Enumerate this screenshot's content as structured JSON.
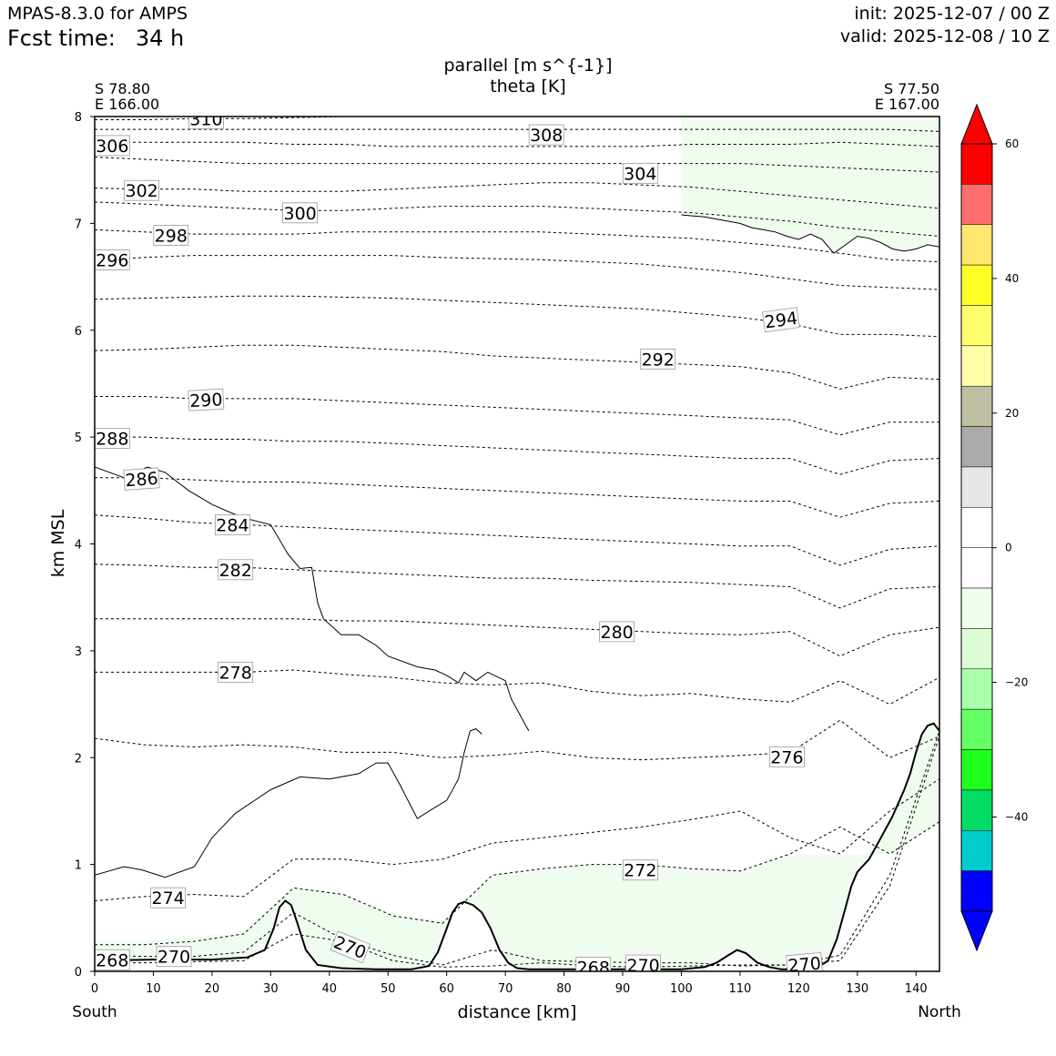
{
  "header": {
    "model": "MPAS-8.3.0 for AMPS",
    "fcst_label": "Fcst time:",
    "fcst_value": "34 h",
    "init": "init: 2025-12-07 / 00 Z",
    "valid": "valid: 2025-12-08 / 10 Z"
  },
  "colors": {
    "contour": "#000000",
    "light_green_fill": "#f0fcee",
    "frame": "#000000"
  },
  "chart_data": {
    "type": "cross-section",
    "title_line1": "parallel [m s^{-1}]",
    "title_line2": "theta [K]",
    "start_point": {
      "lat": "S 78.80",
      "lon": "E 166.00"
    },
    "end_point": {
      "lat": "S 77.50",
      "lon": "E 167.00"
    },
    "xlabel": "distance [km]",
    "ylabel": "km MSL",
    "x_left_label": "South",
    "x_right_label": "North",
    "xlim": [
      0,
      144
    ],
    "ylim": [
      0,
      8
    ],
    "xticks": [
      0,
      10,
      20,
      30,
      40,
      50,
      60,
      70,
      80,
      90,
      100,
      110,
      120,
      130,
      140
    ],
    "yticks": [
      0,
      1,
      2,
      3,
      4,
      5,
      6,
      7,
      8
    ],
    "theta_contours": [
      {
        "value": 268,
        "y": [
          0.08,
          0.08,
          0.09,
          0.1,
          0.35,
          0.28,
          0.1,
          0.04,
          0.05,
          0.08,
          0.05,
          0.04,
          0.05,
          0.06,
          0.06,
          0.1,
          0.8,
          2.2
        ]
      },
      {
        "value": 270,
        "y": [
          0.15,
          0.14,
          0.14,
          0.18,
          0.55,
          0.3,
          0.15,
          0.06,
          0.2,
          0.1,
          0.09,
          0.08,
          0.08,
          0.05,
          0.06,
          0.15,
          0.9,
          2.25
        ]
      },
      {
        "value": 272,
        "y": [
          0.25,
          0.25,
          0.28,
          0.35,
          0.78,
          0.72,
          0.52,
          0.45,
          0.9,
          0.96,
          1.0,
          1.0,
          0.96,
          0.94,
          1.1,
          1.35,
          1.1,
          1.4
        ]
      },
      {
        "value": 274,
        "y": [
          0.66,
          0.7,
          0.72,
          0.7,
          1.05,
          1.05,
          1.0,
          1.05,
          1.2,
          1.25,
          1.3,
          1.35,
          1.42,
          1.5,
          1.25,
          1.1,
          1.5,
          1.8
        ]
      },
      {
        "value": 276,
        "y": [
          2.18,
          2.12,
          2.1,
          2.12,
          2.1,
          2.05,
          2.05,
          2.0,
          2.02,
          2.06,
          2.0,
          1.98,
          2.0,
          2.02,
          2.05,
          2.35,
          2.0,
          2.2
        ]
      },
      {
        "value": 278,
        "y": [
          2.8,
          2.8,
          2.8,
          2.8,
          2.82,
          2.78,
          2.75,
          2.7,
          2.68,
          2.7,
          2.62,
          2.58,
          2.6,
          2.55,
          2.52,
          2.72,
          2.5,
          2.75
        ]
      },
      {
        "value": 280,
        "y": [
          3.3,
          3.3,
          3.3,
          3.3,
          3.3,
          3.28,
          3.28,
          3.26,
          3.24,
          3.22,
          3.2,
          3.18,
          3.16,
          3.15,
          3.18,
          2.95,
          3.15,
          3.22
        ]
      },
      {
        "value": 282,
        "y": [
          3.81,
          3.8,
          3.78,
          3.78,
          3.76,
          3.74,
          3.72,
          3.7,
          3.68,
          3.68,
          3.66,
          3.65,
          3.64,
          3.62,
          3.6,
          3.4,
          3.58,
          3.6
        ]
      },
      {
        "value": 284,
        "y": [
          4.27,
          4.24,
          4.2,
          4.18,
          4.16,
          4.14,
          4.12,
          4.1,
          4.08,
          4.06,
          4.04,
          4.02,
          4.0,
          3.98,
          3.98,
          3.8,
          3.95,
          3.98
        ]
      },
      {
        "value": 286,
        "y": [
          4.62,
          4.62,
          4.6,
          4.58,
          4.58,
          4.56,
          4.54,
          4.52,
          4.5,
          4.48,
          4.46,
          4.44,
          4.42,
          4.4,
          4.4,
          4.25,
          4.38,
          4.4
        ]
      },
      {
        "value": 288,
        "y": [
          5.0,
          5.0,
          4.98,
          4.98,
          4.96,
          4.96,
          4.94,
          4.92,
          4.9,
          4.88,
          4.86,
          4.84,
          4.82,
          4.8,
          4.8,
          4.65,
          4.78,
          4.8
        ]
      },
      {
        "value": 290,
        "y": [
          5.38,
          5.38,
          5.36,
          5.36,
          5.36,
          5.34,
          5.32,
          5.3,
          5.28,
          5.26,
          5.24,
          5.22,
          5.2,
          5.18,
          5.16,
          5.02,
          5.14,
          5.14
        ]
      },
      {
        "value": 292,
        "y": [
          5.81,
          5.82,
          5.84,
          5.86,
          5.86,
          5.84,
          5.82,
          5.8,
          5.76,
          5.74,
          5.72,
          5.7,
          5.68,
          5.66,
          5.6,
          5.45,
          5.56,
          5.54
        ]
      },
      {
        "value": 294,
        "y": [
          6.29,
          6.3,
          6.31,
          6.32,
          6.32,
          6.31,
          6.3,
          6.28,
          6.26,
          6.24,
          6.22,
          6.2,
          6.16,
          6.12,
          6.06,
          5.96,
          5.96,
          5.94
        ]
      },
      {
        "value": 296,
        "y": [
          6.66,
          6.68,
          6.7,
          6.7,
          6.7,
          6.7,
          6.7,
          6.68,
          6.67,
          6.66,
          6.64,
          6.62,
          6.58,
          6.54,
          6.48,
          6.42,
          6.4,
          6.38
        ]
      },
      {
        "value": 298,
        "y": [
          6.94,
          6.92,
          6.9,
          6.9,
          6.9,
          6.92,
          6.92,
          6.92,
          6.92,
          6.92,
          6.9,
          6.88,
          6.86,
          6.82,
          6.78,
          6.72,
          6.66,
          6.64
        ]
      },
      {
        "value": 300,
        "y": [
          7.2,
          7.18,
          7.16,
          7.14,
          7.12,
          7.12,
          7.14,
          7.16,
          7.16,
          7.16,
          7.14,
          7.12,
          7.1,
          7.06,
          7.02,
          6.96,
          6.92,
          6.88
        ]
      },
      {
        "value": 302,
        "y": [
          7.33,
          7.32,
          7.32,
          7.3,
          7.3,
          7.3,
          7.32,
          7.34,
          7.36,
          7.38,
          7.38,
          7.36,
          7.34,
          7.3,
          7.26,
          7.22,
          7.18,
          7.14
        ]
      },
      {
        "value": 304,
        "y": [
          7.62,
          7.6,
          7.58,
          7.56,
          7.56,
          7.56,
          7.56,
          7.56,
          7.56,
          7.56,
          7.56,
          7.56,
          7.56,
          7.56,
          7.54,
          7.52,
          7.5,
          7.48
        ]
      },
      {
        "value": 306,
        "y": [
          7.76,
          7.76,
          7.76,
          7.76,
          7.74,
          7.74,
          7.72,
          7.72,
          7.72,
          7.72,
          7.72,
          7.72,
          7.74,
          7.74,
          7.74,
          7.76,
          7.74,
          7.72
        ]
      },
      {
        "value": 308,
        "y": [
          7.88,
          7.88,
          7.88,
          7.88,
          7.88,
          7.88,
          7.88,
          7.88,
          7.88,
          7.88,
          7.88,
          7.88,
          7.88,
          7.88,
          7.88,
          7.88,
          7.88,
          7.86
        ]
      },
      {
        "value": 310,
        "y": [
          7.97,
          7.97,
          7.98,
          7.98,
          7.99,
          8.0,
          8.0,
          8.0,
          8.0,
          8.0,
          8.0,
          8.0,
          8.0,
          8.0,
          8.0,
          8.0,
          8.0,
          8.0
        ]
      }
    ],
    "contour_labels": [
      {
        "text": "310",
        "x": 19,
        "y": 7.97,
        "rot": 0
      },
      {
        "text": "308",
        "x": 77,
        "y": 7.82,
        "rot": 0
      },
      {
        "text": "306",
        "x": 3,
        "y": 7.72,
        "rot": 0
      },
      {
        "text": "304",
        "x": 93,
        "y": 7.46,
        "rot": 0
      },
      {
        "text": "302",
        "x": 8,
        "y": 7.3,
        "rot": 0
      },
      {
        "text": "300",
        "x": 35,
        "y": 7.09,
        "rot": 0
      },
      {
        "text": "298",
        "x": 13,
        "y": 6.88,
        "rot": 0
      },
      {
        "text": "296",
        "x": 3,
        "y": 6.65,
        "rot": 0
      },
      {
        "text": "294",
        "x": 117,
        "y": 6.09,
        "rot": -8
      },
      {
        "text": "292",
        "x": 96,
        "y": 5.72,
        "rot": 0
      },
      {
        "text": "290",
        "x": 19,
        "y": 5.34,
        "rot": -3
      },
      {
        "text": "288",
        "x": 3,
        "y": 4.98,
        "rot": 0
      },
      {
        "text": "286",
        "x": 8,
        "y": 4.6,
        "rot": -4
      },
      {
        "text": "284",
        "x": 23.5,
        "y": 4.17,
        "rot": 0
      },
      {
        "text": "282",
        "x": 24,
        "y": 3.75,
        "rot": 0
      },
      {
        "text": "280",
        "x": 89,
        "y": 3.17,
        "rot": 0
      },
      {
        "text": "278",
        "x": 24,
        "y": 2.79,
        "rot": 0
      },
      {
        "text": "276",
        "x": 118,
        "y": 2.0,
        "rot": 0
      },
      {
        "text": "274",
        "x": 12.5,
        "y": 0.68,
        "rot": 0
      },
      {
        "text": "272",
        "x": 93,
        "y": 0.94,
        "rot": 0
      },
      {
        "text": "270",
        "x": 13.5,
        "y": 0.13,
        "rot": 0
      },
      {
        "text": "270",
        "x": 43.5,
        "y": 0.22,
        "rot": 22
      },
      {
        "text": "270",
        "x": 93.5,
        "y": 0.05,
        "rot": 0
      },
      {
        "text": "270",
        "x": 121,
        "y": 0.06,
        "rot": -5
      },
      {
        "text": "268",
        "x": 3,
        "y": 0.1,
        "rot": 0
      },
      {
        "text": "268",
        "x": 85,
        "y": 0.03,
        "rot": 0
      }
    ],
    "wind_zero_contours": [
      {
        "name": "upper-left",
        "x": [
          0,
          5,
          9,
          12,
          16,
          20,
          25,
          30,
          33,
          35,
          37,
          38,
          39,
          42,
          45,
          48,
          50,
          55,
          58,
          60,
          62,
          63,
          65,
          67,
          70,
          71,
          72,
          73,
          74
        ],
        "y": [
          4.72,
          4.62,
          4.72,
          4.67,
          4.5,
          4.37,
          4.25,
          4.18,
          3.9,
          3.77,
          3.78,
          3.45,
          3.3,
          3.15,
          3.15,
          3.05,
          2.95,
          2.85,
          2.82,
          2.77,
          2.7,
          2.8,
          2.72,
          2.8,
          2.72,
          2.55,
          2.45,
          2.35,
          2.25
        ]
      },
      {
        "name": "lower-left",
        "x": [
          0,
          5,
          8,
          12,
          17,
          20,
          24,
          30,
          35,
          40,
          45,
          48,
          50,
          52,
          55,
          57,
          60,
          62,
          63,
          64,
          65,
          66
        ],
        "y": [
          0.9,
          0.98,
          0.95,
          0.88,
          0.98,
          1.25,
          1.48,
          1.7,
          1.82,
          1.8,
          1.85,
          1.95,
          1.95,
          1.75,
          1.43,
          1.5,
          1.6,
          1.8,
          2.05,
          2.25,
          2.27,
          2.22
        ]
      },
      {
        "name": "upper-right",
        "x": [
          100,
          102,
          104,
          106,
          108,
          110,
          112,
          114,
          116,
          118,
          120,
          122,
          124,
          126,
          128,
          130,
          132,
          134,
          136,
          138,
          140,
          142,
          144
        ],
        "y": [
          7.08,
          7.07,
          7.06,
          7.04,
          7.02,
          7.0,
          6.96,
          6.94,
          6.92,
          6.88,
          6.85,
          6.9,
          6.85,
          6.72,
          6.8,
          6.88,
          6.86,
          6.82,
          6.76,
          6.74,
          6.76,
          6.8,
          6.78
        ]
      }
    ],
    "terrain": {
      "x": [
        0,
        10,
        20,
        26,
        29,
        30.5,
        31.5,
        32.5,
        33.5,
        34.5,
        36,
        38,
        42,
        48,
        54,
        57,
        58.5,
        60,
        61,
        62,
        63,
        64.5,
        66,
        67.5,
        69,
        70.5,
        72,
        74,
        80,
        90,
        100,
        104,
        106,
        108,
        109.5,
        111,
        113,
        115,
        117,
        120,
        123,
        125,
        126.5,
        128,
        129,
        130,
        132,
        134,
        136,
        138,
        139,
        140,
        141,
        142,
        143,
        144
      ],
      "y": [
        0.1,
        0.11,
        0.11,
        0.13,
        0.2,
        0.4,
        0.6,
        0.66,
        0.62,
        0.46,
        0.2,
        0.06,
        0.03,
        0.02,
        0.02,
        0.05,
        0.18,
        0.4,
        0.55,
        0.63,
        0.65,
        0.62,
        0.55,
        0.4,
        0.2,
        0.08,
        0.03,
        0.02,
        0.02,
        0.02,
        0.02,
        0.04,
        0.08,
        0.15,
        0.2,
        0.17,
        0.08,
        0.04,
        0.02,
        0.02,
        0.03,
        0.1,
        0.3,
        0.6,
        0.8,
        0.93,
        1.05,
        1.25,
        1.45,
        1.7,
        1.85,
        2.05,
        2.22,
        2.3,
        2.32,
        2.25
      ]
    },
    "colorbar": {
      "ticks": [
        "60",
        "40",
        "20",
        "0",
        "−20",
        "−40"
      ],
      "colors": [
        "#ff0000",
        "#ff6e6e",
        "#ffe66e",
        "#ffff28",
        "#ffff6e",
        "#ffffaa",
        "#bebea0",
        "#aaaaaa",
        "#e6e6e6",
        "#ffffff",
        "#ffffff",
        "#f0fcee",
        "#dcfcd6",
        "#aaffaa",
        "#64ff64",
        "#1eff1e",
        "#00dc64",
        "#00cccc",
        "#0000ff"
      ],
      "top_cap": "#ff0000",
      "bottom_cap": "#0000ff"
    }
  }
}
